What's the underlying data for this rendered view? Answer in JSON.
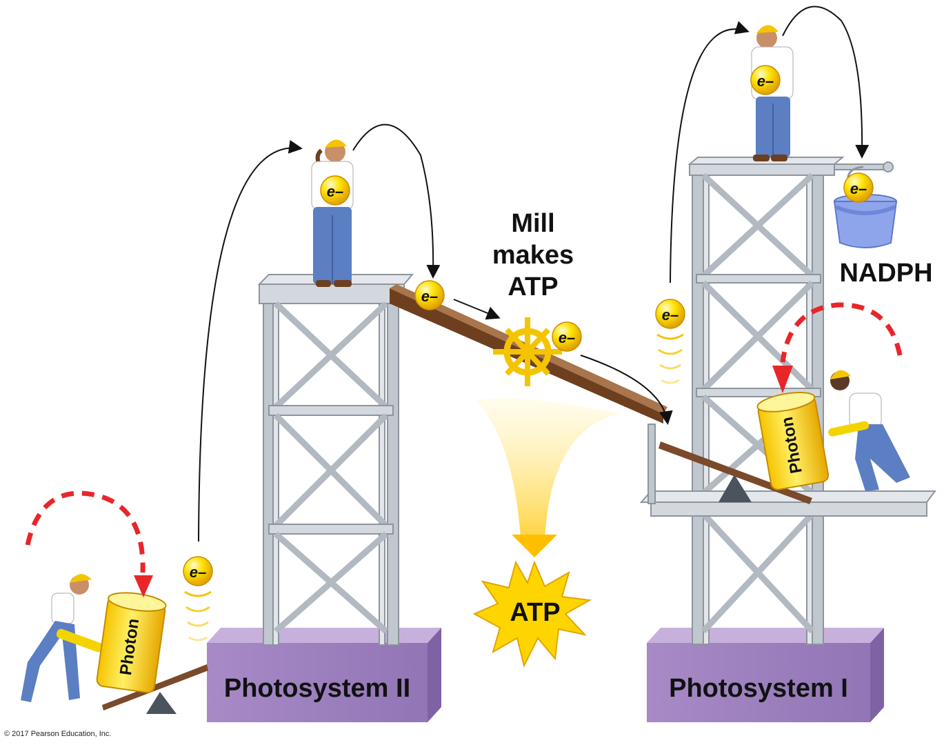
{
  "labels": {
    "electron": "e–",
    "photon": "Photon",
    "mill": [
      "Mill",
      "makes",
      "ATP"
    ],
    "atp": "ATP",
    "nadph": "NADPH",
    "ps2": "Photosystem II",
    "ps1": "Photosystem I"
  },
  "copyright": "© 2017 Pearson Education, Inc.",
  "colors": {
    "platform_purple": "#a98bc4",
    "tower_gray": "#b8bec6",
    "electron_yellow": "#ffd400",
    "dashed_arrow_red": "#e8262a",
    "ramp_brown": "#7a4a2a",
    "atp_star": "#ffd500"
  }
}
